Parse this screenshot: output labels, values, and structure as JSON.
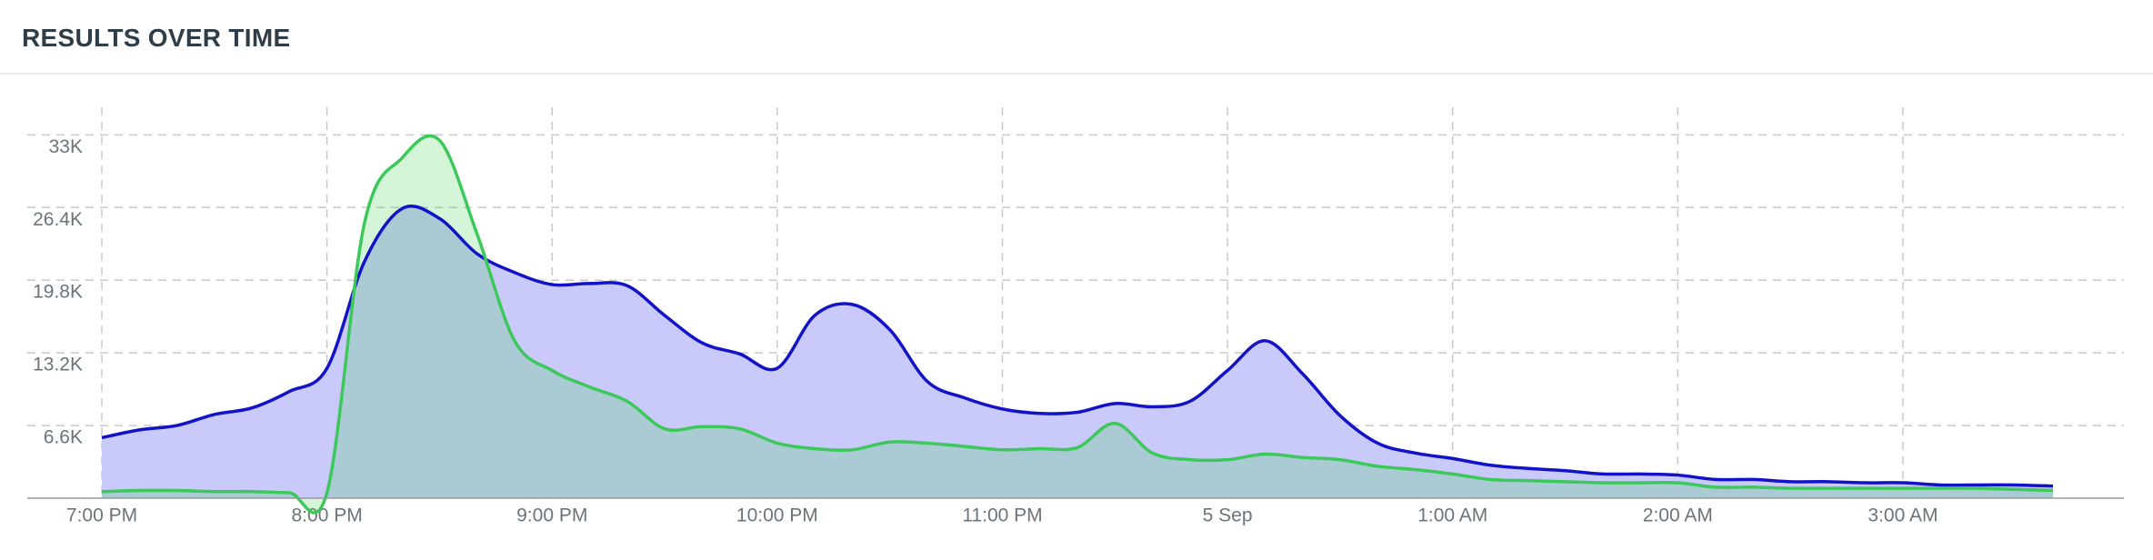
{
  "chart_data": {
    "type": "area",
    "title": "RESULTS OVER TIME",
    "categories": [
      "7:00 PM",
      null,
      null,
      null,
      null,
      null,
      "8:00 PM",
      null,
      null,
      null,
      null,
      null,
      "9:00 PM",
      null,
      null,
      null,
      null,
      null,
      "10:00 PM",
      null,
      null,
      null,
      null,
      null,
      "11:00 PM",
      null,
      null,
      null,
      null,
      null,
      "5 Sep",
      null,
      null,
      null,
      null,
      null,
      "1:00 AM",
      null,
      null,
      null,
      null,
      null,
      "2:00 AM",
      null,
      null,
      null,
      null,
      null,
      "3:00 AM",
      null,
      null,
      null,
      null
    ],
    "series": [
      {
        "color": "#1212c8",
        "fill": "#cacafa",
        "values": [
          5500,
          6200,
          6600,
          7600,
          8200,
          9700,
          11800,
          21500,
          26300,
          25400,
          22200,
          20500,
          19400,
          19500,
          19300,
          16600,
          14100,
          13100,
          11800,
          16600,
          17600,
          15300,
          10600,
          9100,
          8100,
          7700,
          7800,
          8600,
          8300,
          8800,
          11600,
          14300,
          11300,
          7500,
          5000,
          4100,
          3600,
          3000,
          2700,
          2500,
          2200,
          2200,
          2100,
          1700,
          1700,
          1500,
          1500,
          1400,
          1400,
          1200,
          1200,
          1200,
          1100
        ]
      },
      {
        "color": "#3cc85a",
        "fill": "#22cb32",
        "values": [
          600,
          700,
          700,
          600,
          600,
          500,
          500,
          25000,
          30900,
          32500,
          24000,
          14300,
          11600,
          10100,
          8800,
          6300,
          6500,
          6300,
          5000,
          4500,
          4400,
          5100,
          5000,
          4700,
          4400,
          4500,
          4600,
          6800,
          4100,
          3500,
          3500,
          4000,
          3700,
          3500,
          2900,
          2600,
          2200,
          1700,
          1600,
          1500,
          1400,
          1400,
          1400,
          1000,
          1000,
          900,
          900,
          900,
          900,
          900,
          900,
          800,
          700
        ]
      }
    ],
    "ylim": [
      0,
      36000
    ],
    "yticks": [
      {
        "value": 6600,
        "label": "6.6K"
      },
      {
        "value": 13200,
        "label": "13.2K"
      },
      {
        "value": 19800,
        "label": "19.8K"
      },
      {
        "value": 26400,
        "label": "26.4K"
      },
      {
        "value": 33000,
        "label": "33K"
      }
    ],
    "grid": true
  }
}
